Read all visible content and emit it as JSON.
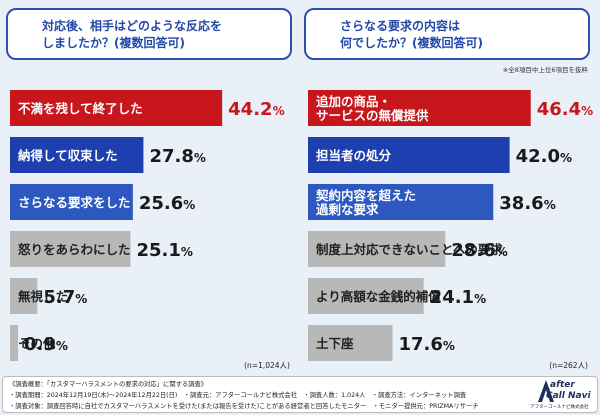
{
  "colors": {
    "red": "#c8161d",
    "blue": "#1e3fb0",
    "gray": "#b8b8b8",
    "question_border": "#2e4fb4",
    "question_text": "#2448a8"
  },
  "chart_data": [
    {
      "type": "bar",
      "orientation": "horizontal",
      "title": "対応後、相手はどのような反応を\nしましたか？(複数回答可)",
      "categories": [
        "不満を残して終了した",
        "納得して収束した",
        "さらなる要求をした",
        "怒りをあらわにした",
        "無視した",
        "その他"
      ],
      "values": [
        44.2,
        27.8,
        25.6,
        25.1,
        5.7,
        0.9
      ],
      "value_labels": [
        "44.2%",
        "27.8%",
        "25.6%",
        "25.1%",
        "5.7%",
        "0.9%"
      ],
      "bar_colors": [
        "#c8161d",
        "#1e3fb0",
        "#2d58c0",
        "#b8b8b8",
        "#b8b8b8",
        "#b8b8b8"
      ],
      "n_label": "(n=1,024人)"
    },
    {
      "type": "bar",
      "orientation": "horizontal",
      "title": "さらなる要求の内容は\n何でしたか？(複数回答可)",
      "note": "※全8項目中上位6項目を抜粋",
      "categories": [
        "追加の商品・\nサービスの無償提供",
        "担当者の処分",
        "契約内容を超えた\n過剰な要求",
        "制度上対応できないことへの要求",
        "より高額な金銭的補償",
        "土下座"
      ],
      "values": [
        46.4,
        42.0,
        38.6,
        28.6,
        24.1,
        17.6
      ],
      "value_labels": [
        "46.4%",
        "42.0%",
        "38.6%",
        "28.6%",
        "24.1%",
        "17.6%"
      ],
      "bar_colors": [
        "#c8161d",
        "#1e3fb0",
        "#2d58c0",
        "#b8b8b8",
        "#b8b8b8",
        "#b8b8b8"
      ],
      "n_label": "(n=262人)"
    }
  ],
  "footer": {
    "line1": "《調査概要：「カスタマーハラスメントの要求の対応」に関する調査》",
    "line2": "・調査期間：2024年12月19日(木)～2024年12月22日(日)　・調査元：アフターコールナビ株式会社　・調査人数：1,024人　・調査方法：インターネット調査",
    "line3": "・調査対象：調査回答時に自社でカスタマーハラスメントを受けた(または報告を受けた)ことがある経営者と回答したモニター　・モニター提供元：PRIZMAリサーチ"
  },
  "logo": {
    "line1": "after",
    "line2": "Call Navi",
    "sub": "アフターコールナビ株式会社"
  }
}
